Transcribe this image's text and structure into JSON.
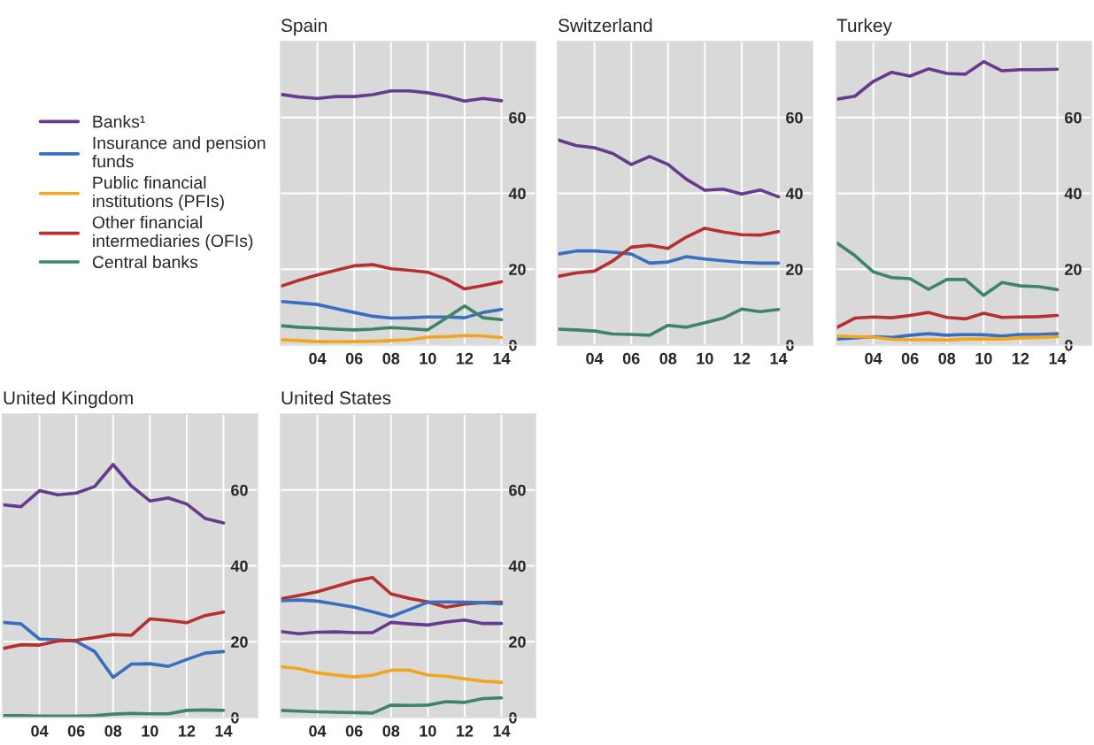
{
  "chart_data": [
    {
      "type": "line",
      "title": "Spain",
      "x": [
        2002,
        2003,
        2004,
        2005,
        2006,
        2007,
        2008,
        2009,
        2010,
        2011,
        2012,
        2013,
        2014
      ],
      "xlim": [
        2002,
        2015.85
      ],
      "ylim": [
        0,
        80
      ],
      "xticks": [
        {
          "value": 2004,
          "label": "04"
        },
        {
          "value": 2006,
          "label": "06"
        },
        {
          "value": 2008,
          "label": "08"
        },
        {
          "value": 2010,
          "label": "10"
        },
        {
          "value": 2012,
          "label": "12"
        },
        {
          "value": 2014,
          "label": "14"
        }
      ],
      "yticks": [
        0,
        20,
        40,
        60
      ],
      "grid": true,
      "legend": "left",
      "series": [
        {
          "name": "Banks¹",
          "color": "#663a8f",
          "values": [
            66.1,
            65.4,
            65.0,
            65.5,
            65.5,
            66.0,
            67.0,
            67.0,
            66.5,
            65.6,
            64.3,
            65.0,
            64.4
          ]
        },
        {
          "name": "Insurance and pension\nfunds",
          "color": "#3a6fbf",
          "values": [
            11.5,
            11.1,
            10.7,
            9.6,
            8.6,
            7.6,
            7.1,
            7.2,
            7.4,
            7.4,
            7.2,
            8.6,
            9.4
          ]
        },
        {
          "name": "Public financial\ninstitutions (PFIs)",
          "color": "#f2a51f",
          "values": [
            1.4,
            1.2,
            0.9,
            0.9,
            0.9,
            1.0,
            1.2,
            1.4,
            2.1,
            2.2,
            2.5,
            2.4,
            2.0
          ]
        },
        {
          "name": "Other financial\nintermediaries (OFIs)",
          "color": "#b5302e",
          "values": [
            15.5,
            17.1,
            18.5,
            19.7,
            20.9,
            21.2,
            20.1,
            19.7,
            19.2,
            17.4,
            14.8,
            15.7,
            16.7
          ]
        },
        {
          "name": "Central banks",
          "color": "#3e8468",
          "values": [
            5.1,
            4.7,
            4.5,
            4.2,
            4.0,
            4.2,
            4.6,
            4.3,
            4.0,
            7.1,
            10.3,
            7.2,
            6.7
          ]
        }
      ]
    },
    {
      "type": "line",
      "title": "Switzerland",
      "x": [
        2002,
        2003,
        2004,
        2005,
        2006,
        2007,
        2008,
        2009,
        2010,
        2011,
        2012,
        2013,
        2014
      ],
      "xlim": [
        2002,
        2015.85
      ],
      "ylim": [
        0,
        80
      ],
      "xticks": [
        {
          "value": 2004,
          "label": "04"
        },
        {
          "value": 2006,
          "label": "06"
        },
        {
          "value": 2008,
          "label": "08"
        },
        {
          "value": 2010,
          "label": "10"
        },
        {
          "value": 2012,
          "label": "12"
        },
        {
          "value": 2014,
          "label": "14"
        }
      ],
      "yticks": [
        0,
        20,
        40,
        60
      ],
      "grid": true,
      "series": [
        {
          "color": "#663a8f",
          "values": [
            54.1,
            52.6,
            52.0,
            50.5,
            47.6,
            49.7,
            47.6,
            43.7,
            40.8,
            41.1,
            39.8,
            40.9,
            39.1
          ]
        },
        {
          "color": "#3a6fbf",
          "values": [
            24.0,
            24.8,
            24.8,
            24.5,
            24.0,
            21.6,
            21.9,
            23.3,
            22.7,
            22.2,
            21.8,
            21.6,
            21.6
          ]
        },
        {
          "color": "#b5302e",
          "values": [
            18.1,
            19.0,
            19.5,
            22.2,
            25.8,
            26.3,
            25.5,
            28.5,
            30.8,
            29.8,
            29.1,
            29.0,
            29.9
          ]
        },
        {
          "color": "#3e8468",
          "values": [
            4.2,
            4.0,
            3.7,
            2.9,
            2.8,
            2.6,
            5.2,
            4.7,
            5.9,
            7.1,
            9.5,
            8.8,
            9.4
          ]
        }
      ]
    },
    {
      "type": "line",
      "title": "Turkey",
      "x": [
        2002,
        2003,
        2004,
        2005,
        2006,
        2007,
        2008,
        2009,
        2010,
        2011,
        2012,
        2013,
        2014
      ],
      "xlim": [
        2002,
        2015.85
      ],
      "ylim": [
        0,
        80
      ],
      "xticks": [
        {
          "value": 2004,
          "label": "04"
        },
        {
          "value": 2006,
          "label": "06"
        },
        {
          "value": 2008,
          "label": "08"
        },
        {
          "value": 2010,
          "label": "10"
        },
        {
          "value": 2012,
          "label": "12"
        },
        {
          "value": 2014,
          "label": "14"
        }
      ],
      "yticks": [
        0,
        20,
        40,
        60
      ],
      "grid": true,
      "series": [
        {
          "color": "#663a8f",
          "values": [
            64.8,
            65.6,
            69.5,
            71.9,
            70.9,
            72.8,
            71.6,
            71.4,
            74.7,
            72.3,
            72.6,
            72.6,
            72.7
          ]
        },
        {
          "color": "#3e8468",
          "values": [
            27.0,
            23.6,
            19.3,
            17.8,
            17.5,
            14.7,
            17.3,
            17.3,
            13.1,
            16.5,
            15.6,
            15.4,
            14.6
          ]
        },
        {
          "color": "#b5302e",
          "values": [
            4.6,
            7.1,
            7.4,
            7.2,
            7.8,
            8.6,
            7.3,
            6.9,
            8.4,
            7.3,
            7.4,
            7.5,
            7.8
          ]
        },
        {
          "color": "#3a6fbf",
          "values": [
            1.6,
            1.9,
            2.2,
            2.0,
            2.6,
            3.0,
            2.6,
            2.8,
            2.7,
            2.4,
            2.8,
            2.8,
            3.0
          ]
        },
        {
          "color": "#f2a51f",
          "values": [
            2.4,
            2.2,
            2.1,
            1.5,
            1.4,
            1.4,
            1.3,
            1.6,
            1.6,
            1.6,
            1.9,
            2.0,
            2.2
          ]
        }
      ]
    },
    {
      "type": "line",
      "title": "United Kingdom",
      "x": [
        2002,
        2003,
        2004,
        2005,
        2006,
        2007,
        2008,
        2009,
        2010,
        2011,
        2012,
        2013,
        2014
      ],
      "xlim": [
        2002,
        2015.85
      ],
      "ylim": [
        0,
        80
      ],
      "xticks": [
        {
          "value": 2004,
          "label": "04"
        },
        {
          "value": 2006,
          "label": "06"
        },
        {
          "value": 2008,
          "label": "08"
        },
        {
          "value": 2010,
          "label": "10"
        },
        {
          "value": 2012,
          "label": "12"
        },
        {
          "value": 2014,
          "label": "14"
        }
      ],
      "yticks": [
        0,
        20,
        40,
        60
      ],
      "grid": true,
      "series": [
        {
          "color": "#663a8f",
          "values": [
            56.1,
            55.6,
            59.8,
            58.7,
            59.2,
            60.9,
            66.7,
            61.0,
            57.1,
            57.9,
            56.3,
            52.5,
            51.3
          ]
        },
        {
          "color": "#3a6fbf",
          "values": [
            25.1,
            24.7,
            20.7,
            20.5,
            20.1,
            17.4,
            10.6,
            14.1,
            14.2,
            13.5,
            15.3,
            17.0,
            17.4
          ]
        },
        {
          "color": "#b5302e",
          "values": [
            18.2,
            19.2,
            19.1,
            20.2,
            20.4,
            21.1,
            21.9,
            21.7,
            26.0,
            25.6,
            25.0,
            26.9,
            27.8
          ]
        },
        {
          "color": "#3e8468",
          "values": [
            0.5,
            0.5,
            0.4,
            0.4,
            0.4,
            0.5,
            0.9,
            1.1,
            1.0,
            1.0,
            1.9,
            2.0,
            1.9
          ]
        }
      ]
    },
    {
      "type": "line",
      "title": "United States",
      "x": [
        2002,
        2003,
        2004,
        2005,
        2006,
        2007,
        2008,
        2009,
        2010,
        2011,
        2012,
        2013,
        2014
      ],
      "xlim": [
        2002,
        2015.85
      ],
      "ylim": [
        0,
        80
      ],
      "xticks": [
        {
          "value": 2004,
          "label": "04"
        },
        {
          "value": 2006,
          "label": "06"
        },
        {
          "value": 2008,
          "label": "08"
        },
        {
          "value": 2010,
          "label": "10"
        },
        {
          "value": 2012,
          "label": "12"
        },
        {
          "value": 2014,
          "label": "14"
        }
      ],
      "yticks": [
        0,
        20,
        40,
        60
      ],
      "grid": true,
      "series": [
        {
          "color": "#b5302e",
          "values": [
            31.3,
            32.2,
            33.2,
            34.6,
            36.0,
            36.9,
            32.6,
            31.4,
            30.5,
            29.1,
            29.9,
            30.3,
            30.4
          ]
        },
        {
          "color": "#3a6fbf",
          "values": [
            30.8,
            31.0,
            30.7,
            29.9,
            29.1,
            27.9,
            26.6,
            28.5,
            30.4,
            30.5,
            30.4,
            30.3,
            30.0
          ]
        },
        {
          "color": "#663a8f",
          "values": [
            22.7,
            22.1,
            22.5,
            22.6,
            22.4,
            22.4,
            25.1,
            24.7,
            24.4,
            25.2,
            25.7,
            24.8,
            24.8
          ]
        },
        {
          "color": "#f2a51f",
          "values": [
            13.4,
            12.9,
            11.8,
            11.2,
            10.7,
            11.2,
            12.5,
            12.5,
            11.2,
            10.9,
            10.2,
            9.6,
            9.3
          ]
        },
        {
          "color": "#3e8468",
          "values": [
            1.9,
            1.7,
            1.5,
            1.4,
            1.3,
            1.2,
            3.3,
            3.2,
            3.3,
            4.2,
            4.0,
            5.0,
            5.2
          ]
        }
      ]
    }
  ]
}
